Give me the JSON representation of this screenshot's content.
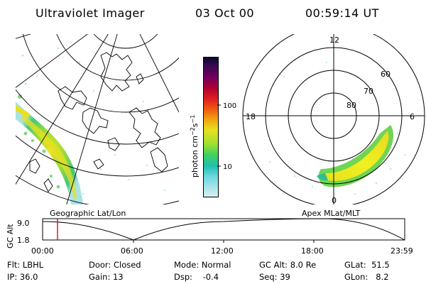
{
  "header": {
    "instrument": "Ultraviolet Imager",
    "date": "03 Oct 00",
    "time": "00:59:14 UT"
  },
  "colorbar": {
    "unit_html": "photon cm",
    "ticks": [
      "100",
      "10"
    ]
  },
  "polar": {
    "hour_labels": [
      "12",
      "18",
      "6",
      "0"
    ],
    "lat_labels": [
      "60",
      "70",
      "80"
    ]
  },
  "labels": {
    "geographic": "Geographic Lat/Lon",
    "apex": "Apex MLat/MLT"
  },
  "timeline": {
    "ylabel": "GC Alt",
    "y_ticks": [
      "9.0",
      "1.8"
    ],
    "x_ticks": [
      "00:00",
      "06:00",
      "12:00",
      "18:00",
      "23:59"
    ]
  },
  "info": {
    "row1": [
      {
        "label": "Flt:",
        "value": "LBHL"
      },
      {
        "label": "Door:",
        "value": "Closed"
      },
      {
        "label": "Mode:",
        "value": "Normal"
      },
      {
        "label": "GC Alt:",
        "value": "8.0 Re"
      },
      {
        "label": "GLat:",
        "value": "51.5"
      }
    ],
    "row2": [
      {
        "label": "IP:",
        "value": "36.0"
      },
      {
        "label": "Gain:",
        "value": "13"
      },
      {
        "label": "Dsp:",
        "value": "-0.4"
      },
      {
        "label": "Seq:",
        "value": "39"
      },
      {
        "label": "GLon:",
        "value": "8.2"
      }
    ]
  }
}
